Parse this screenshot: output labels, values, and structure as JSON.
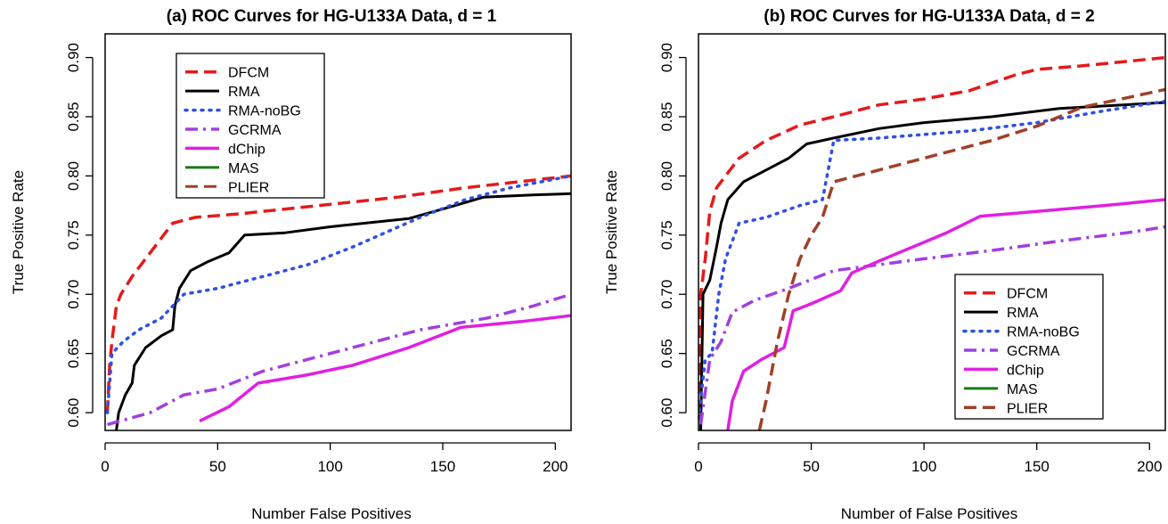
{
  "chart_data": [
    {
      "type": "line",
      "title": "(a) ROC Curves for HG-U133A Data, d = 1",
      "xlabel": "Number False Positives",
      "ylabel": "True Positive Rate",
      "xlim": [
        0,
        207
      ],
      "ylim": [
        0.585,
        0.92
      ],
      "xticks": [
        "0",
        "50",
        "100",
        "150",
        "200"
      ],
      "xtick_values": [
        0,
        50,
        100,
        150,
        200
      ],
      "yticks": [
        "0.60",
        "0.65",
        "0.70",
        "0.75",
        "0.80",
        "0.85",
        "0.90"
      ],
      "ytick_values": [
        0.6,
        0.65,
        0.7,
        0.75,
        0.8,
        0.85,
        0.9
      ],
      "legend_position": "top-left",
      "grid": false,
      "series": [
        {
          "name": "DFCM",
          "color": "#e41a1c",
          "dash": "dashed",
          "width": 3.5,
          "points": [
            [
              1,
              0.6
            ],
            [
              2,
              0.64
            ],
            [
              3,
              0.66
            ],
            [
              5,
              0.69
            ],
            [
              7,
              0.7
            ],
            [
              12,
              0.715
            ],
            [
              20,
              0.735
            ],
            [
              30,
              0.76
            ],
            [
              40,
              0.765
            ],
            [
              60,
              0.768
            ],
            [
              80,
              0.772
            ],
            [
              100,
              0.776
            ],
            [
              130,
              0.782
            ],
            [
              160,
              0.79
            ],
            [
              207,
              0.8
            ]
          ]
        },
        {
          "name": "RMA",
          "color": "#000000",
          "dash": "solid",
          "width": 3,
          "points": [
            [
              5,
              0.585
            ],
            [
              6,
              0.6
            ],
            [
              9,
              0.615
            ],
            [
              12,
              0.625
            ],
            [
              13,
              0.64
            ],
            [
              18,
              0.655
            ],
            [
              25,
              0.665
            ],
            [
              30,
              0.67
            ],
            [
              31,
              0.69
            ],
            [
              33,
              0.705
            ],
            [
              38,
              0.72
            ],
            [
              45,
              0.727
            ],
            [
              55,
              0.735
            ],
            [
              62,
              0.75
            ],
            [
              80,
              0.752
            ],
            [
              100,
              0.757
            ],
            [
              135,
              0.764
            ],
            [
              150,
              0.772
            ],
            [
              168,
              0.782
            ],
            [
              190,
              0.784
            ],
            [
              207,
              0.785
            ]
          ]
        },
        {
          "name": "RMA-noBG",
          "color": "#3050e0",
          "dash": "dotted",
          "width": 3.5,
          "points": [
            [
              1,
              0.6
            ],
            [
              3,
              0.65
            ],
            [
              8,
              0.66
            ],
            [
              15,
              0.67
            ],
            [
              25,
              0.68
            ],
            [
              35,
              0.7
            ],
            [
              50,
              0.705
            ],
            [
              70,
              0.715
            ],
            [
              90,
              0.725
            ],
            [
              110,
              0.74
            ],
            [
              140,
              0.765
            ],
            [
              160,
              0.78
            ],
            [
              180,
              0.79
            ],
            [
              207,
              0.8
            ]
          ]
        },
        {
          "name": "GCRMA",
          "color": "#a040e0",
          "dash": "dashdot",
          "width": 3.5,
          "points": [
            [
              1,
              0.59
            ],
            [
              20,
              0.6
            ],
            [
              35,
              0.615
            ],
            [
              50,
              0.62
            ],
            [
              70,
              0.635
            ],
            [
              90,
              0.645
            ],
            [
              110,
              0.655
            ],
            [
              140,
              0.67
            ],
            [
              170,
              0.68
            ],
            [
              190,
              0.69
            ],
            [
              207,
              0.7
            ]
          ]
        },
        {
          "name": "dChip",
          "color": "#e020e0",
          "dash": "solid",
          "width": 3.5,
          "points": [
            [
              42,
              0.593
            ],
            [
              55,
              0.605
            ],
            [
              68,
              0.625
            ],
            [
              90,
              0.632
            ],
            [
              110,
              0.64
            ],
            [
              135,
              0.655
            ],
            [
              158,
              0.672
            ],
            [
              185,
              0.677
            ],
            [
              207,
              0.682
            ]
          ]
        },
        {
          "name": "MAS",
          "color": "#1a7a1a",
          "dash": "solid",
          "width": 3,
          "points": []
        },
        {
          "name": "PLIER",
          "color": "#a0402a",
          "dash": "dashed",
          "width": 3,
          "points": []
        }
      ]
    },
    {
      "type": "line",
      "title": "(b) ROC Curves for HG-U133A Data, d = 2",
      "xlabel": "Number of False Positives",
      "ylabel": "True Positive Rate",
      "xlim": [
        0,
        207
      ],
      "ylim": [
        0.585,
        0.92
      ],
      "xticks": [
        "0",
        "50",
        "100",
        "150",
        "200"
      ],
      "xtick_values": [
        0,
        50,
        100,
        150,
        200
      ],
      "yticks": [
        "0.60",
        "0.65",
        "0.70",
        "0.75",
        "0.80",
        "0.85",
        "0.90"
      ],
      "ytick_values": [
        0.6,
        0.65,
        0.7,
        0.75,
        0.8,
        0.85,
        0.9
      ],
      "legend_position": "bottom-right",
      "grid": false,
      "series": [
        {
          "name": "DFCM",
          "color": "#e41a1c",
          "dash": "dashed",
          "width": 3.5,
          "points": [
            [
              0,
              0.6
            ],
            [
              1,
              0.7
            ],
            [
              3,
              0.73
            ],
            [
              5,
              0.77
            ],
            [
              8,
              0.79
            ],
            [
              12,
              0.8
            ],
            [
              18,
              0.815
            ],
            [
              30,
              0.83
            ],
            [
              45,
              0.843
            ],
            [
              60,
              0.85
            ],
            [
              80,
              0.86
            ],
            [
              100,
              0.865
            ],
            [
              120,
              0.872
            ],
            [
              140,
              0.885
            ],
            [
              150,
              0.89
            ],
            [
              170,
              0.893
            ],
            [
              207,
              0.9
            ]
          ]
        },
        {
          "name": "RMA",
          "color": "#000000",
          "dash": "solid",
          "width": 3,
          "points": [
            [
              1,
              0.585
            ],
            [
              2,
              0.7
            ],
            [
              5,
              0.712
            ],
            [
              8,
              0.74
            ],
            [
              10,
              0.76
            ],
            [
              13,
              0.78
            ],
            [
              20,
              0.795
            ],
            [
              30,
              0.805
            ],
            [
              40,
              0.815
            ],
            [
              48,
              0.827
            ],
            [
              60,
              0.832
            ],
            [
              80,
              0.84
            ],
            [
              100,
              0.845
            ],
            [
              130,
              0.85
            ],
            [
              160,
              0.857
            ],
            [
              207,
              0.862
            ]
          ]
        },
        {
          "name": "RMA-noBG",
          "color": "#3050e0",
          "dash": "dotted",
          "width": 3.5,
          "points": [
            [
              0,
              0.595
            ],
            [
              3,
              0.645
            ],
            [
              6,
              0.65
            ],
            [
              9,
              0.7
            ],
            [
              12,
              0.73
            ],
            [
              18,
              0.76
            ],
            [
              30,
              0.765
            ],
            [
              45,
              0.775
            ],
            [
              55,
              0.78
            ],
            [
              60,
              0.83
            ],
            [
              80,
              0.832
            ],
            [
              120,
              0.838
            ],
            [
              150,
              0.845
            ],
            [
              180,
              0.855
            ],
            [
              207,
              0.863
            ]
          ]
        },
        {
          "name": "GCRMA",
          "color": "#a040e0",
          "dash": "dashdot",
          "width": 3.5,
          "points": [
            [
              1,
              0.59
            ],
            [
              5,
              0.645
            ],
            [
              10,
              0.66
            ],
            [
              15,
              0.685
            ],
            [
              25,
              0.695
            ],
            [
              40,
              0.705
            ],
            [
              60,
              0.72
            ],
            [
              80,
              0.725
            ],
            [
              100,
              0.73
            ],
            [
              130,
              0.737
            ],
            [
              160,
              0.745
            ],
            [
              190,
              0.752
            ],
            [
              207,
              0.757
            ]
          ]
        },
        {
          "name": "dChip",
          "color": "#e020e0",
          "dash": "solid",
          "width": 3.5,
          "points": [
            [
              13,
              0.585
            ],
            [
              15,
              0.61
            ],
            [
              20,
              0.635
            ],
            [
              28,
              0.645
            ],
            [
              38,
              0.655
            ],
            [
              42,
              0.686
            ],
            [
              50,
              0.692
            ],
            [
              63,
              0.703
            ],
            [
              68,
              0.718
            ],
            [
              80,
              0.728
            ],
            [
              95,
              0.74
            ],
            [
              110,
              0.752
            ],
            [
              125,
              0.766
            ],
            [
              150,
              0.77
            ],
            [
              180,
              0.775
            ],
            [
              207,
              0.78
            ]
          ]
        },
        {
          "name": "MAS",
          "color": "#1a7a1a",
          "dash": "solid",
          "width": 3,
          "points": []
        },
        {
          "name": "PLIER",
          "color": "#a0402a",
          "dash": "dashed",
          "width": 3.5,
          "points": [
            [
              27,
              0.585
            ],
            [
              30,
              0.61
            ],
            [
              35,
              0.66
            ],
            [
              40,
              0.7
            ],
            [
              45,
              0.73
            ],
            [
              50,
              0.75
            ],
            [
              55,
              0.765
            ],
            [
              60,
              0.795
            ],
            [
              80,
              0.805
            ],
            [
              100,
              0.815
            ],
            [
              130,
              0.83
            ],
            [
              150,
              0.842
            ],
            [
              170,
              0.858
            ],
            [
              190,
              0.866
            ],
            [
              207,
              0.873
            ]
          ]
        }
      ]
    }
  ]
}
